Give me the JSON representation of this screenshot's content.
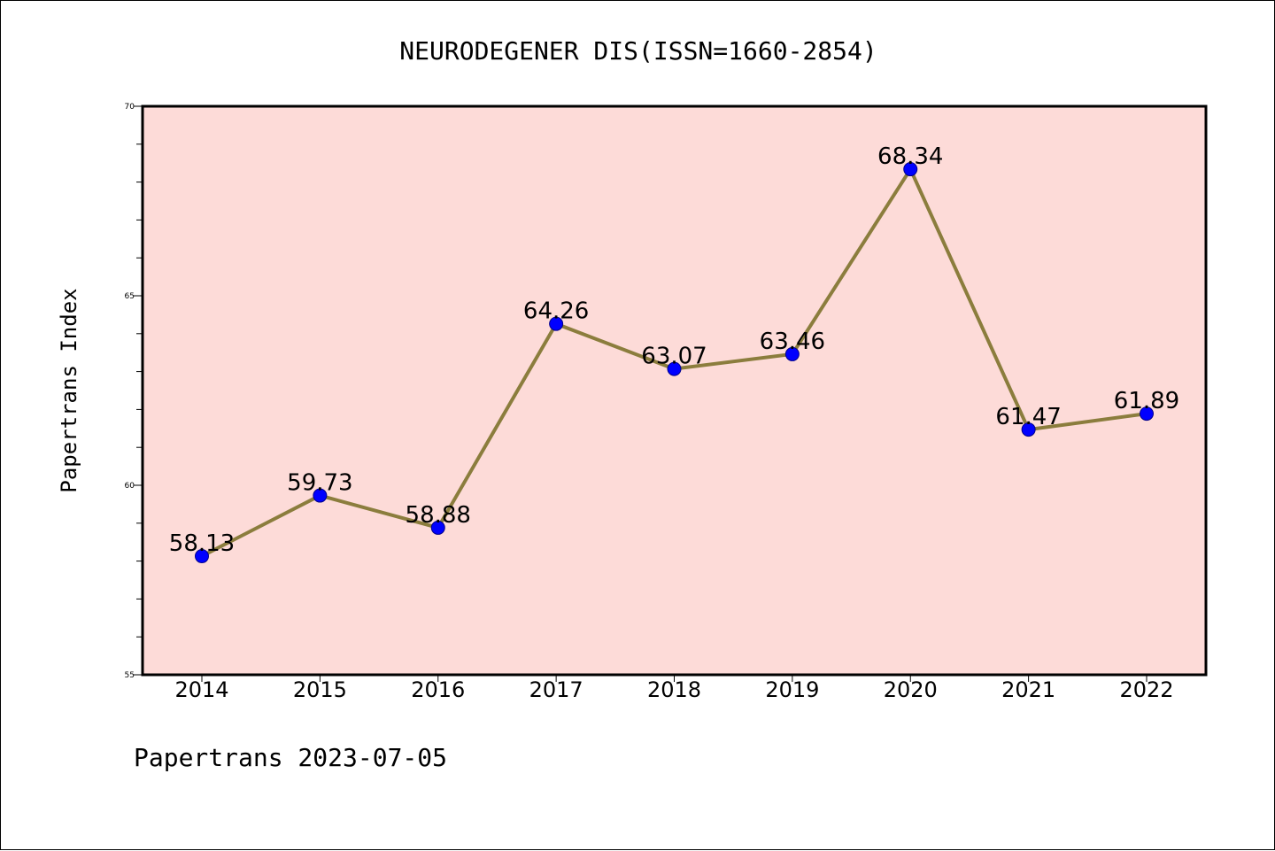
{
  "title": "NEURODEGENER DIS(ISSN=1660-2854)",
  "footer": "Papertrans 2023-07-05",
  "colors": {
    "plot_background": "#fddbd8",
    "line": "#8b7d3d",
    "point": "#0000ff",
    "axis": "#000000"
  },
  "chart_data": {
    "type": "line",
    "title": "NEURODEGENER DIS(ISSN=1660-2854)",
    "xlabel": "",
    "ylabel": "Papertrans Index",
    "x": [
      "2014",
      "2015",
      "2016",
      "2017",
      "2018",
      "2019",
      "2020",
      "2021",
      "2022"
    ],
    "series": [
      {
        "values": [
          58.13,
          59.73,
          58.88,
          64.26,
          63.07,
          63.46,
          68.34,
          61.47,
          61.89
        ],
        "labels": [
          "58.13",
          "59.73",
          "58.88",
          "64.26",
          "63.07",
          "63.46",
          "68.34",
          "61.47",
          "61.89"
        ]
      }
    ],
    "ylim": [
      55,
      70
    ],
    "y_ticks": [
      55,
      60,
      65,
      70
    ],
    "y_tick_labels": [
      "55",
      "60",
      "65",
      "70"
    ],
    "y_minor_step": 1,
    "grid": false,
    "legend": "none"
  }
}
